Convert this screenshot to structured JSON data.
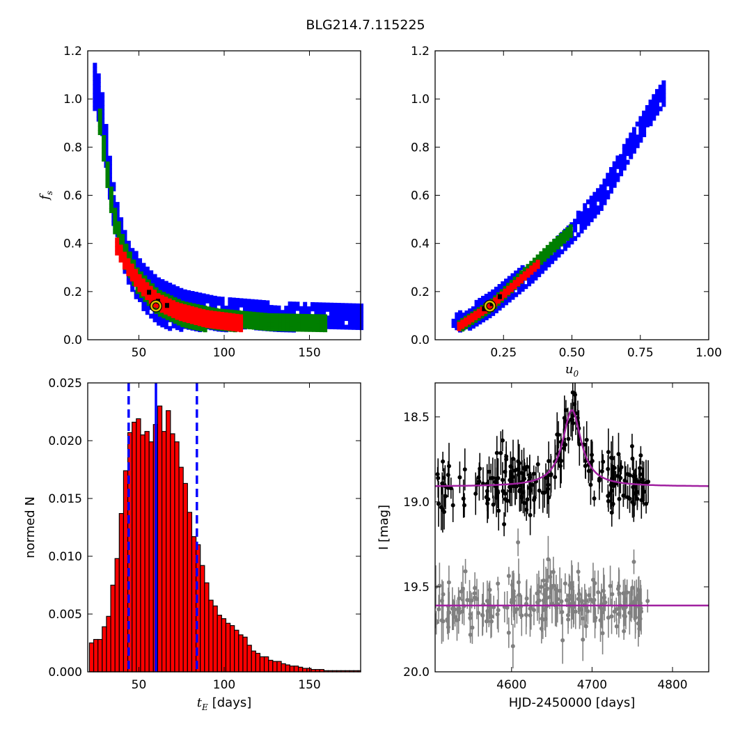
{
  "title": "BLG214.7.115225",
  "chart_data": [
    {
      "id": "fs_vs_tE",
      "type": "heatmap",
      "description_of_colors": "blue=outer, green=middle, red=inner confidence region, black=best cells",
      "xlim": [
        20,
        180
      ],
      "ylim": [
        0.0,
        1.2
      ],
      "xticks": [
        "50",
        "100",
        "150"
      ],
      "yticks": [
        "0.0",
        "0.2",
        "0.4",
        "0.6",
        "0.8",
        "1.0",
        "1.2"
      ],
      "ylabel": "f",
      "ylabel_sub": "s",
      "xlabel": "",
      "colors": {
        "outer": "#0000ff",
        "mid": "#007f00",
        "inner": "#ff0000",
        "best": "#000000",
        "marker": "#d4c400"
      },
      "best_fit": {
        "x": 60,
        "y": 0.14
      },
      "bands": [
        {
          "level": "outer",
          "pts": [
            [
              23,
              1.04
            ],
            [
              27,
              0.96
            ],
            [
              30,
              0.78
            ],
            [
              33,
              0.6
            ],
            [
              37,
              0.45
            ],
            [
              42,
              0.33
            ],
            [
              50,
              0.22
            ],
            [
              60,
              0.15
            ],
            [
              75,
              0.1
            ],
            [
              95,
              0.07
            ],
            [
              130,
              0.05
            ],
            [
              180,
              0.04
            ]
          ],
          "w": 0.09
        },
        {
          "level": "mid",
          "pts": [
            [
              26,
              0.9
            ],
            [
              29,
              0.75
            ],
            [
              32,
              0.6
            ],
            [
              35,
              0.48
            ],
            [
              40,
              0.36
            ],
            [
              48,
              0.24
            ],
            [
              60,
              0.15
            ],
            [
              75,
              0.1
            ],
            [
              95,
              0.07
            ],
            [
              125,
              0.05
            ],
            [
              160,
              0.045
            ]
          ],
          "w": 0.05
        },
        {
          "level": "inner",
          "pts": [
            [
              36,
              0.38
            ],
            [
              42,
              0.3
            ],
            [
              50,
              0.22
            ],
            [
              60,
              0.15
            ],
            [
              72,
              0.11
            ],
            [
              88,
              0.08
            ],
            [
              110,
              0.06
            ]
          ],
          "w": 0.03
        }
      ]
    },
    {
      "id": "fs_vs_u0",
      "type": "heatmap",
      "xlim": [
        0.0,
        1.0
      ],
      "ylim": [
        0.0,
        1.2
      ],
      "xticks": [
        "0.25",
        "0.50",
        "0.75",
        "1.00"
      ],
      "yticks": [
        "0.0",
        "0.2",
        "0.4",
        "0.6",
        "0.8",
        "1.0",
        "1.2"
      ],
      "xlabel": "u",
      "xlabel_sub": "0",
      "best_fit": {
        "x": 0.2,
        "y": 0.14
      },
      "bands": [
        {
          "level": "outer",
          "pts": [
            [
              0.06,
              0.04
            ],
            [
              0.2,
              0.14
            ],
            [
              0.35,
              0.28
            ],
            [
              0.5,
              0.45
            ],
            [
              0.6,
              0.58
            ],
            [
              0.7,
              0.78
            ],
            [
              0.8,
              0.97
            ],
            [
              0.84,
              1.03
            ]
          ],
          "w": 0.045
        },
        {
          "level": "mid",
          "pts": [
            [
              0.08,
              0.05
            ],
            [
              0.2,
              0.14
            ],
            [
              0.32,
              0.27
            ],
            [
              0.42,
              0.38
            ],
            [
              0.5,
              0.46
            ]
          ],
          "w": 0.025
        },
        {
          "level": "inner",
          "pts": [
            [
              0.08,
              0.05
            ],
            [
              0.2,
              0.14
            ],
            [
              0.3,
              0.24
            ],
            [
              0.37,
              0.31
            ]
          ],
          "w": 0.014
        }
      ]
    },
    {
      "id": "tE_histogram",
      "type": "bar",
      "xlim": [
        20,
        180
      ],
      "ylim": [
        0.0,
        0.025
      ],
      "xticks": [
        "50",
        "100",
        "150"
      ],
      "yticks": [
        "0.000",
        "0.005",
        "0.010",
        "0.015",
        "0.020",
        "0.025"
      ],
      "ylabel": "normed N",
      "xlabel_math": "t",
      "xlabel_sub": "E",
      "xlabel": "[days]",
      "bin_start": 21,
      "bin_width": 2.5,
      "values": [
        0.0025,
        0.0028,
        0.0028,
        0.0039,
        0.0048,
        0.0075,
        0.0098,
        0.0137,
        0.0174,
        0.0207,
        0.0216,
        0.0219,
        0.0205,
        0.0208,
        0.0199,
        0.0214,
        0.023,
        0.0208,
        0.0226,
        0.0206,
        0.0199,
        0.0177,
        0.0163,
        0.0138,
        0.0117,
        0.011,
        0.0092,
        0.0077,
        0.0062,
        0.0057,
        0.0049,
        0.0046,
        0.0042,
        0.004,
        0.0036,
        0.0032,
        0.003,
        0.0023,
        0.0018,
        0.0016,
        0.0013,
        0.0013,
        0.001,
        0.0009,
        0.0009,
        0.0007,
        0.0006,
        0.0005,
        0.0005,
        0.0004,
        0.0003,
        0.0003,
        0.0002,
        0.0002,
        0.0002,
        0.0001,
        0.0001,
        0.0001,
        0.0001,
        0.0001,
        0.0001,
        0.0001,
        0.0001,
        0.0001
      ],
      "bar_color": "#ff0000",
      "vlines": [
        {
          "x": 44,
          "style": "dashed",
          "color": "#0000ff"
        },
        {
          "x": 60,
          "style": "solid",
          "color": "#0000ff"
        },
        {
          "x": 84,
          "style": "dashed",
          "color": "#0000ff"
        }
      ]
    },
    {
      "id": "light_curve",
      "type": "scatter",
      "xlim": [
        4505,
        4845
      ],
      "ylim": [
        20.0,
        18.3
      ],
      "xticks": [
        "4600",
        "4700",
        "4800"
      ],
      "yticks": [
        "18.5",
        "19.0",
        "19.5",
        "20.0"
      ],
      "xlabel": "HJD-2450000 [days]",
      "ylabel": "I [mag]",
      "series": [
        {
          "color": "#000000",
          "baseline": 18.9,
          "peak": 18.46,
          "t0": 4675,
          "tE": 15,
          "scatter": 0.13,
          "offset": 0
        },
        {
          "color": "#808080",
          "baseline": 19.6,
          "peak": 19.6,
          "t0": 4675,
          "tE": 15,
          "scatter": 0.15,
          "offset": 0
        }
      ],
      "model_color": "#a020a0",
      "model": {
        "t0": 4675,
        "baseline": 18.91,
        "peak": 18.46,
        "tau": 14
      },
      "model_flat": 19.61,
      "n_points": 230,
      "t_range": [
        4505,
        4770
      ]
    }
  ]
}
